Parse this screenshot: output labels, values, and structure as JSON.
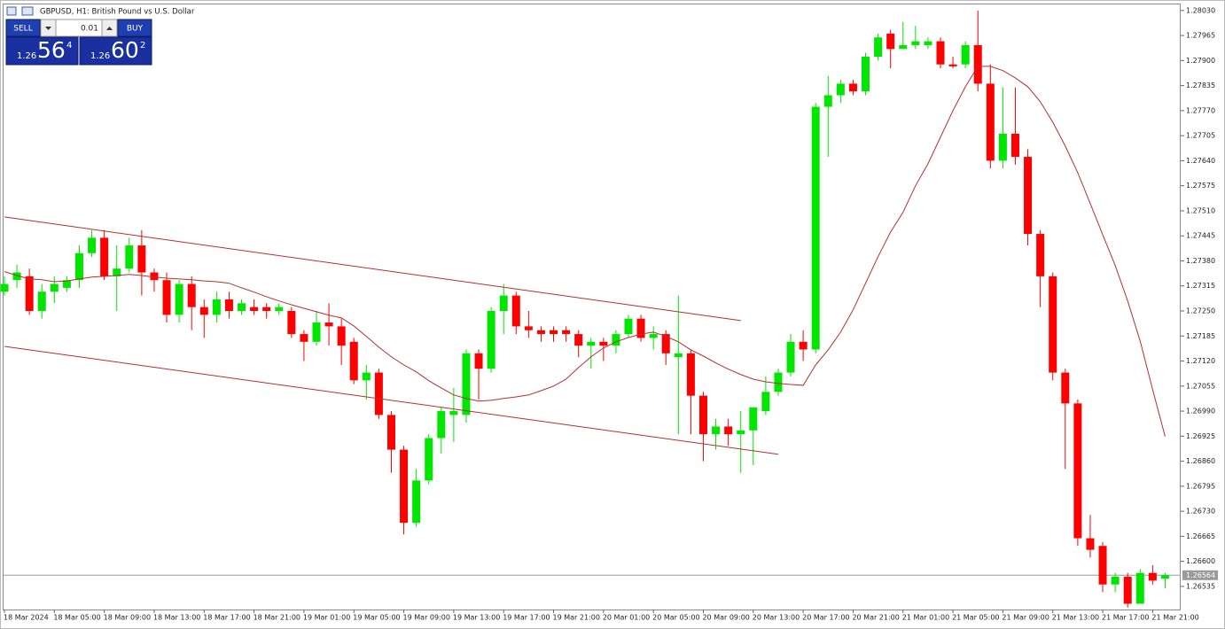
{
  "header": {
    "title": "GBPUSD, H1:  British Pound vs U.S. Dollar"
  },
  "trade_panel": {
    "sell": "SELL",
    "buy": "BUY",
    "lot": "0.01",
    "sell_price": {
      "big_figure": "1.26",
      "pips": "56",
      "point": "4"
    },
    "buy_price": {
      "big_figure": "1.26",
      "pips": "60",
      "point": "2"
    }
  },
  "chart_data": {
    "type": "candlestick",
    "categories": [
      "18 Mar 2024",
      null,
      null,
      null,
      "18 Mar 05:00",
      null,
      null,
      null,
      "18 Mar 09:00",
      null,
      null,
      null,
      "18 Mar 13:00",
      null,
      null,
      null,
      "18 Mar 17:00",
      null,
      null,
      null,
      "18 Mar 21:00",
      null,
      null,
      null,
      "19 Mar 01:00",
      null,
      null,
      null,
      "19 Mar 05:00",
      null,
      null,
      null,
      "19 Mar 09:00",
      null,
      null,
      null,
      "19 Mar 13:00",
      null,
      null,
      null,
      "19 Mar 17:00",
      null,
      null,
      null,
      "19 Mar 21:00",
      null,
      null,
      null,
      "20 Mar 01:00",
      null,
      null,
      null,
      "20 Mar 05:00",
      null,
      null,
      null,
      "20 Mar 09:00",
      null,
      null,
      null,
      "20 Mar 13:00",
      null,
      null,
      null,
      "20 Mar 17:00",
      null,
      null,
      null,
      "20 Mar 21:00",
      null,
      null,
      null,
      "21 Mar 01:00",
      null,
      null,
      null,
      "21 Mar 05:00",
      null,
      null,
      null,
      "21 Mar 09:00",
      null,
      null,
      null,
      "21 Mar 13:00",
      null,
      null,
      null,
      "21 Mar 17:00",
      null,
      null,
      null,
      "21 Mar 21:00",
      null
    ],
    "open": [
      1.273,
      1.2733,
      1.2734,
      1.2725,
      1.273,
      1.2731,
      1.2733,
      1.274,
      1.2744,
      1.2734,
      1.2736,
      1.2742,
      1.2735,
      1.2733,
      1.2724,
      1.2732,
      1.2726,
      1.2724,
      1.2728,
      1.2725,
      1.2726,
      1.2726,
      1.2725,
      1.2725,
      1.2719,
      1.2717,
      1.2722,
      1.2721,
      1.2717,
      1.2707,
      1.2709,
      1.2698,
      1.2689,
      1.267,
      1.2681,
      1.2692,
      1.2698,
      1.2698,
      1.2714,
      1.271,
      1.2725,
      1.2729,
      1.2721,
      1.272,
      1.272,
      1.272,
      1.2719,
      1.2716,
      1.2717,
      1.2716,
      1.2719,
      1.2723,
      1.2718,
      1.2719,
      1.2713,
      1.2714,
      1.2703,
      1.2693,
      1.2695,
      1.2693,
      1.2694,
      1.2699,
      1.2704,
      1.2709,
      1.2717,
      1.2715,
      1.2778,
      1.2781,
      1.2784,
      1.2782,
      1.2791,
      1.2797,
      1.2793,
      1.2794,
      1.2794,
      1.2795,
      1.2789,
      1.2789,
      1.2794,
      1.2784,
      1.2764,
      1.2771,
      1.2765,
      1.2745,
      1.2734,
      1.2709,
      1.2701,
      1.2666,
      1.2664,
      1.2654,
      1.2656,
      1.2649,
      1.2657,
      1.26555
    ],
    "high": [
      1.2734,
      1.2737,
      1.2736,
      1.2732,
      1.2734,
      1.2734,
      1.2742,
      1.2746,
      1.2746,
      1.2742,
      1.2744,
      1.2746,
      1.2736,
      1.2735,
      1.2733,
      1.2734,
      1.2728,
      1.273,
      1.273,
      1.2728,
      1.2728,
      1.2727,
      1.2727,
      1.2726,
      1.272,
      1.2725,
      1.2727,
      1.2723,
      1.2718,
      1.2711,
      1.271,
      1.2699,
      1.269,
      1.2684,
      1.2693,
      1.27,
      1.2705,
      1.2715,
      1.2715,
      1.2726,
      1.2732,
      1.273,
      1.2725,
      1.2721,
      1.2721,
      1.2721,
      1.272,
      1.2718,
      1.2718,
      1.272,
      1.2724,
      1.2724,
      1.2721,
      1.272,
      1.2729,
      1.2715,
      1.2704,
      1.2697,
      1.2697,
      1.2699,
      1.27,
      1.2708,
      1.271,
      1.2719,
      1.272,
      1.2779,
      1.2786,
      1.2785,
      1.2785,
      1.2792,
      1.2797,
      1.2798,
      1.28,
      1.2799,
      1.2796,
      1.2796,
      1.2791,
      1.2795,
      1.2803,
      1.2789,
      1.2783,
      1.2783,
      1.2767,
      1.2746,
      1.2735,
      1.271,
      1.2702,
      1.2672,
      1.2665,
      1.2657,
      1.2657,
      1.2658,
      1.2659,
      1.2657
    ],
    "low": [
      1.2729,
      1.2731,
      1.2724,
      1.2723,
      1.2727,
      1.273,
      1.2731,
      1.2739,
      1.2733,
      1.2725,
      1.2735,
      1.2729,
      1.273,
      1.2722,
      1.2722,
      1.272,
      1.2718,
      1.2722,
      1.2723,
      1.2724,
      1.2724,
      1.2723,
      1.2724,
      1.2718,
      1.2712,
      1.2716,
      1.2716,
      1.2711,
      1.2706,
      1.2702,
      1.2697,
      1.2683,
      1.2667,
      1.2669,
      1.268,
      1.2688,
      1.2691,
      1.2696,
      1.2702,
      1.2709,
      1.2719,
      1.2719,
      1.2718,
      1.2717,
      1.2717,
      1.2717,
      1.2713,
      1.271,
      1.2712,
      1.2714,
      1.2718,
      1.2717,
      1.2715,
      1.2711,
      1.2693,
      1.2693,
      1.2686,
      1.2689,
      1.269,
      1.2683,
      1.2685,
      1.2698,
      1.2703,
      1.2708,
      1.2712,
      1.2714,
      1.2765,
      1.2779,
      1.2781,
      1.2781,
      1.279,
      1.2788,
      1.2793,
      1.2793,
      1.2793,
      1.2788,
      1.2788,
      1.2788,
      1.2782,
      1.2762,
      1.2762,
      1.2763,
      1.2742,
      1.2726,
      1.2707,
      1.2684,
      1.2664,
      1.2661,
      1.2652,
      1.2652,
      1.2648,
      1.2649,
      1.2654,
      1.2653
    ],
    "close": [
      1.2732,
      1.2735,
      1.2725,
      1.273,
      1.2732,
      1.2733,
      1.274,
      1.2744,
      1.2734,
      1.2736,
      1.2742,
      1.2735,
      1.2733,
      1.2724,
      1.2732,
      1.2726,
      1.2724,
      1.2728,
      1.2725,
      1.2727,
      1.2725,
      1.2725,
      1.2726,
      1.2719,
      1.2717,
      1.2722,
      1.2721,
      1.2716,
      1.2707,
      1.2709,
      1.2698,
      1.2689,
      1.267,
      1.2681,
      1.2692,
      1.2699,
      1.2699,
      1.2714,
      1.271,
      1.2725,
      1.2729,
      1.2721,
      1.272,
      1.2719,
      1.2719,
      1.2719,
      1.2716,
      1.2717,
      1.2716,
      1.2719,
      1.2723,
      1.2718,
      1.2719,
      1.2714,
      1.2714,
      1.2703,
      1.2693,
      1.2695,
      1.2693,
      1.2694,
      1.27,
      1.2704,
      1.2709,
      1.2717,
      1.2715,
      1.2778,
      1.2781,
      1.2784,
      1.2782,
      1.2791,
      1.2796,
      1.2793,
      1.2794,
      1.2795,
      1.2795,
      1.2789,
      1.27885,
      1.2794,
      1.2784,
      1.2764,
      1.2771,
      1.2765,
      1.2745,
      1.2734,
      1.2709,
      1.2701,
      1.2666,
      1.2663,
      1.2654,
      1.2656,
      1.2649,
      1.2657,
      1.2655,
      1.26564
    ],
    "up_color": "#00e600",
    "down_color": "#ff0000",
    "moving_average": {
      "color": "#b53030",
      "values": [
        1.27352,
        1.27342,
        1.27333,
        1.27331,
        1.27326,
        1.27328,
        1.27333,
        1.27338,
        1.2734,
        1.27342,
        1.27345,
        1.27342,
        1.27338,
        1.27335,
        1.27333,
        1.27331,
        1.27328,
        1.27326,
        1.27322,
        1.2731,
        1.27299,
        1.27287,
        1.27276,
        1.27266,
        1.27257,
        1.27248,
        1.27239,
        1.27232,
        1.27211,
        1.27184,
        1.27156,
        1.27131,
        1.2711,
        1.27092,
        1.27069,
        1.2705,
        1.27032,
        1.27023,
        1.27016,
        1.27018,
        1.27023,
        1.27027,
        1.27032,
        1.27043,
        1.27055,
        1.27073,
        1.27103,
        1.27131,
        1.27154,
        1.2717,
        1.27181,
        1.2719,
        1.27195,
        1.27184,
        1.2717,
        1.27149,
        1.27133,
        1.27115,
        1.27099,
        1.27085,
        1.27073,
        1.27066,
        1.27062,
        1.27059,
        1.27057,
        1.2711,
        1.27149,
        1.27195,
        1.27253,
        1.27322,
        1.27391,
        1.27455,
        1.27506,
        1.27575,
        1.27632,
        1.27701,
        1.2777,
        1.27832,
        1.27885,
        1.27885,
        1.27874,
        1.27855,
        1.27832,
        1.27793,
        1.2774,
        1.27678,
        1.27609,
        1.27529,
        1.27448,
        1.27368,
        1.27276,
        1.27172,
        1.27046,
        1.26924
      ]
    },
    "trendlines": [
      {
        "color": "#b53030",
        "x": [
          0,
          59
        ],
        "y": [
          1.27494,
          1.27225
        ]
      },
      {
        "color": "#b53030",
        "x": [
          0,
          62
        ],
        "y": [
          1.27158,
          1.26878
        ]
      }
    ],
    "current_price": {
      "value": 1.26564,
      "color": "#9a9a9a"
    },
    "ylim": [
      1.26475,
      1.28048
    ],
    "yticks": [
      {
        "value": 1.2803,
        "label": "1.28030"
      },
      1.27965,
      {
        "value": 1.279,
        "label": "1.27900"
      },
      1.27835,
      {
        "value": 1.2777,
        "label": "1.27770"
      },
      1.27705,
      {
        "value": 1.2764,
        "label": "1.27640"
      },
      1.27575,
      {
        "value": 1.2751,
        "label": "1.27510"
      },
      1.27445,
      {
        "value": 1.2738,
        "label": "1.27380"
      },
      1.27315,
      {
        "value": 1.2725,
        "label": "1.27250"
      },
      1.27185,
      {
        "value": 1.2712,
        "label": "1.27120"
      },
      1.27055,
      {
        "value": 1.2699,
        "label": "1.26990"
      },
      1.26925,
      {
        "value": 1.2686,
        "label": "1.26860"
      },
      1.26795,
      {
        "value": 1.2673,
        "label": "1.26730"
      },
      1.26665,
      {
        "value": 1.266,
        "label": "1.26600"
      },
      1.26535
    ],
    "grid": false
  }
}
